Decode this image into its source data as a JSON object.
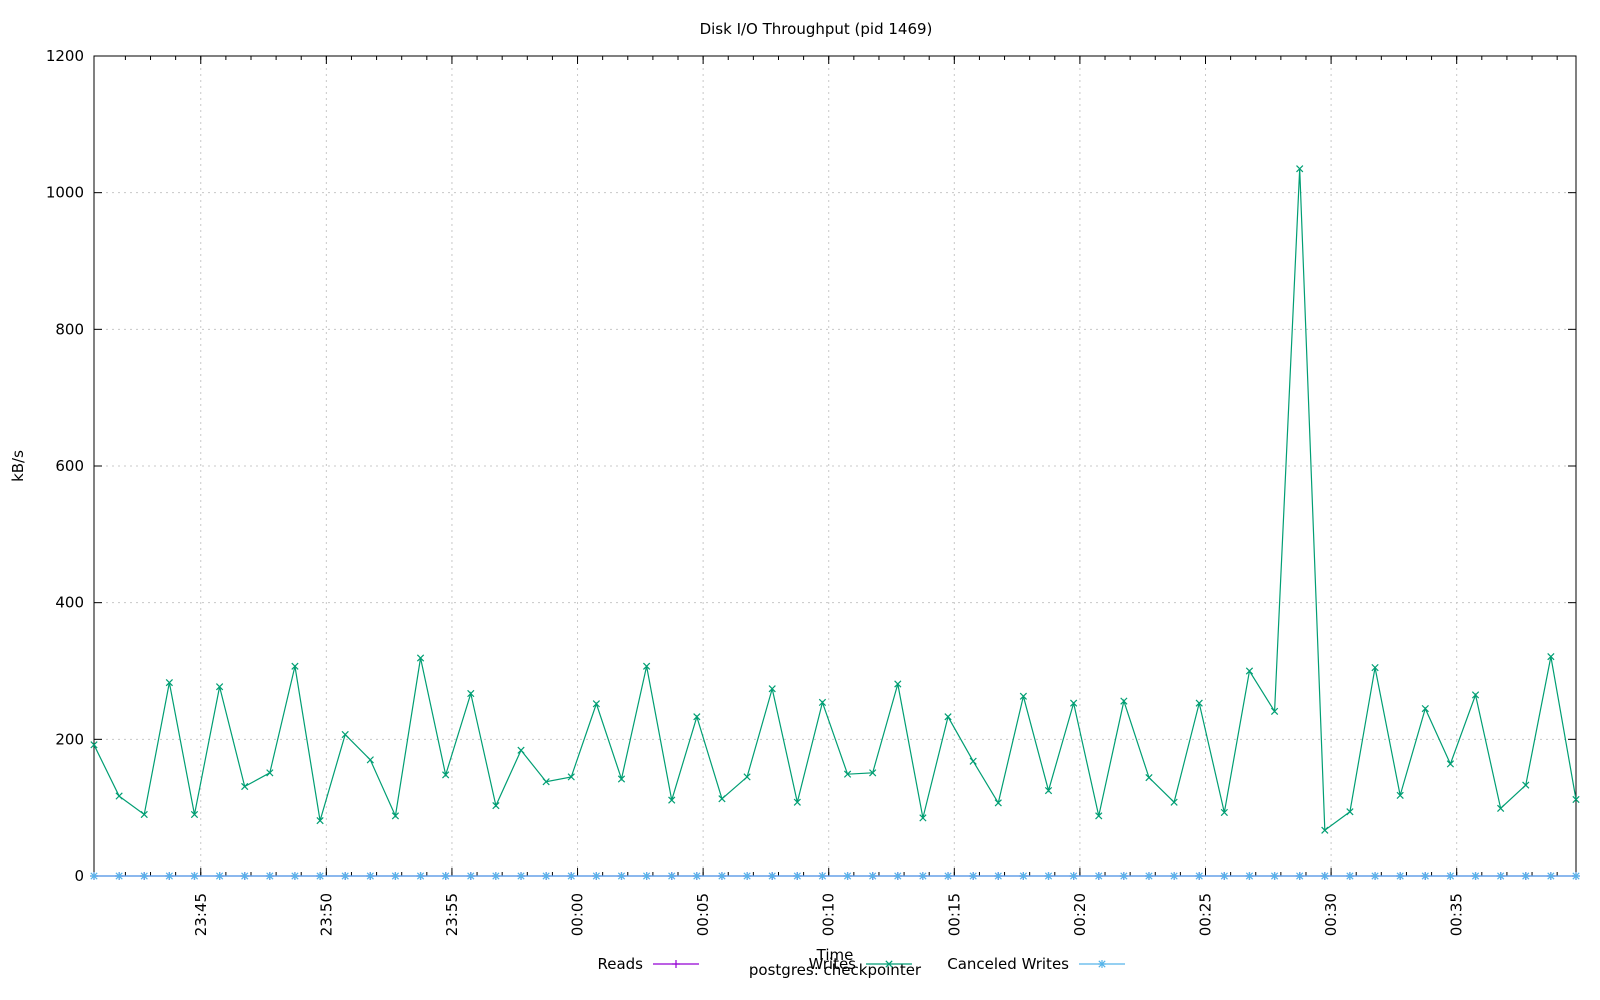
{
  "chart_data": {
    "type": "line",
    "title": "Disk I/O Throughput (pid 1469)",
    "xlabel": "Time",
    "subtitle": "postgres: checkpointer",
    "ylabel": "kB/s",
    "ylim": [
      0,
      1200
    ],
    "y_ticks": [
      "0",
      "200",
      "400",
      "600",
      "800",
      "1000",
      "1200"
    ],
    "x_range": [
      "23:40:45",
      "00:39:45"
    ],
    "x_ticks": [
      "23:45",
      "23:50",
      "23:55",
      "00:00",
      "00:05",
      "00:10",
      "00:15",
      "00:20",
      "00:25",
      "00:30",
      "00:35"
    ],
    "grid": true,
    "legend_position": "bottom",
    "x": [
      "23:40:45",
      "23:41:45",
      "23:42:45",
      "23:43:45",
      "23:44:45",
      "23:45:45",
      "23:46:45",
      "23:47:45",
      "23:48:45",
      "23:49:45",
      "23:50:45",
      "23:51:45",
      "23:52:45",
      "23:53:45",
      "23:54:45",
      "23:55:45",
      "23:56:45",
      "23:57:45",
      "23:58:45",
      "23:59:45",
      "00:00:45",
      "00:01:45",
      "00:02:45",
      "00:03:45",
      "00:04:45",
      "00:05:45",
      "00:06:45",
      "00:07:45",
      "00:08:45",
      "00:09:45",
      "00:10:45",
      "00:11:45",
      "00:12:45",
      "00:13:45",
      "00:14:45",
      "00:15:45",
      "00:16:45",
      "00:17:45",
      "00:18:45",
      "00:19:45",
      "00:20:45",
      "00:21:45",
      "00:22:45",
      "00:23:45",
      "00:24:45",
      "00:25:45",
      "00:26:45",
      "00:27:45",
      "00:28:45",
      "00:29:45",
      "00:30:45",
      "00:31:45",
      "00:32:45",
      "00:33:45",
      "00:34:45",
      "00:35:45",
      "00:36:45",
      "00:37:45",
      "00:38:45",
      "00:39:45"
    ],
    "series": [
      {
        "name": "Reads",
        "color": "#9400d3",
        "marker": "+",
        "values": [
          0,
          0,
          0,
          0,
          0,
          0,
          0,
          0,
          0,
          0,
          0,
          0,
          0,
          0,
          0,
          0,
          0,
          0,
          0,
          0,
          0,
          0,
          0,
          0,
          0,
          0,
          0,
          0,
          0,
          0,
          0,
          0,
          0,
          0,
          0,
          0,
          0,
          0,
          0,
          0,
          0,
          0,
          0,
          0,
          0,
          0,
          0,
          0,
          0,
          0,
          0,
          0,
          0,
          0,
          0,
          0,
          0,
          0,
          0,
          0
        ]
      },
      {
        "name": "Writes",
        "color": "#009e73",
        "marker": "x",
        "values": [
          192,
          117,
          90,
          283,
          90,
          277,
          131,
          151,
          307,
          81,
          207,
          170,
          88,
          319,
          148,
          267,
          103,
          184,
          138,
          145,
          252,
          142,
          307,
          111,
          233,
          113,
          145,
          274,
          108,
          254,
          149,
          151,
          281,
          85,
          233,
          168,
          107,
          263,
          125,
          253,
          88,
          256,
          144,
          108,
          253,
          93,
          300,
          241,
          1035,
          67,
          94,
          305,
          118,
          245,
          164,
          265,
          99,
          133,
          321,
          112
        ]
      },
      {
        "name": "Canceled Writes",
        "color": "#56b4e9",
        "marker": "*",
        "values": [
          0,
          0,
          0,
          0,
          0,
          0,
          0,
          0,
          0,
          0,
          0,
          0,
          0,
          0,
          0,
          0,
          0,
          0,
          0,
          0,
          0,
          0,
          0,
          0,
          0,
          0,
          0,
          0,
          0,
          0,
          0,
          0,
          0,
          0,
          0,
          0,
          0,
          0,
          0,
          0,
          0,
          0,
          0,
          0,
          0,
          0,
          0,
          0,
          0,
          0,
          0,
          0,
          0,
          0,
          0,
          0,
          0,
          0,
          0,
          0
        ]
      }
    ]
  }
}
